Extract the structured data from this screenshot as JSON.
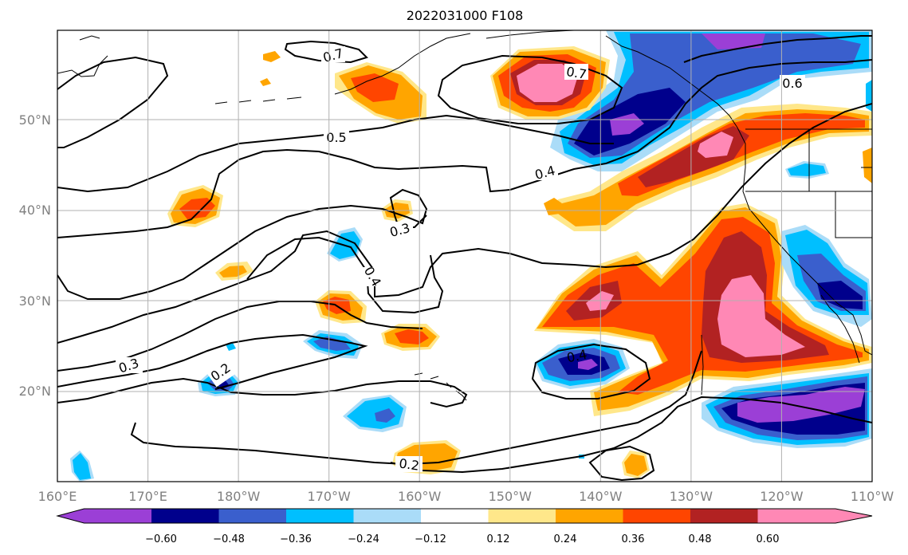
{
  "title": "2022031000 F108",
  "x_ticks": [
    "160°E",
    "170°E",
    "180°W",
    "170°W",
    "160°W",
    "150°W",
    "140°W",
    "130°W",
    "120°W",
    "110°W"
  ],
  "y_ticks": [
    "20°N",
    "30°N",
    "40°N",
    "50°N"
  ],
  "colorbar": {
    "colors": [
      "#9b3fd6",
      "#00008c",
      "#3a5fcd",
      "#00bfff",
      "#aadcf8",
      "#ffffff",
      "#ffe78a",
      "#ffa500",
      "#ff4500",
      "#b22222",
      "#ff88b5"
    ],
    "labels": [
      "−0.60",
      "−0.48",
      "−0.36",
      "−0.24",
      "−0.12",
      "0.12",
      "0.24",
      "0.36",
      "0.48",
      "0.60"
    ]
  },
  "contour_labels": [
    "0.7",
    "0.7",
    "0.6",
    "0.5",
    "0.4",
    "0.3",
    "0.4",
    "0.3",
    "0.2",
    "0.4",
    "0.2"
  ],
  "chart_data": {
    "type": "heatmap",
    "title": "2022031000 F108",
    "xlim": [
      "160°E",
      "110°W"
    ],
    "ylim": [
      "10°N",
      "60°N"
    ],
    "grid": true,
    "colorbar_levels": [
      -0.6,
      -0.48,
      -0.36,
      -0.24,
      -0.12,
      0.12,
      0.24,
      0.36,
      0.48,
      0.6
    ],
    "contour_levels": [
      0.2,
      0.3,
      0.4,
      0.5,
      0.6,
      0.7
    ]
  }
}
